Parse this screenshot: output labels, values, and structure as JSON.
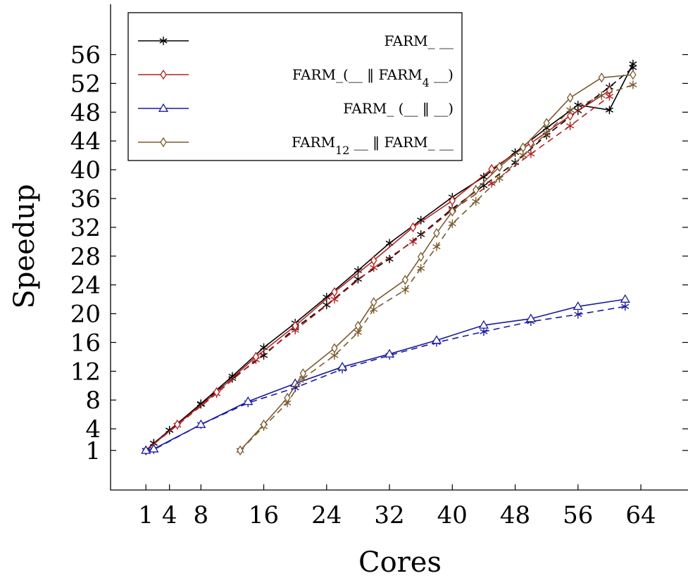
{
  "chart_data": {
    "type": "line",
    "xlabel": "Cores",
    "ylabel": "Speedup",
    "xlim": [
      -3.5,
      70
    ],
    "ylim": [
      -4.5,
      63
    ],
    "xticks": [
      1,
      4,
      8,
      16,
      24,
      32,
      40,
      48,
      56,
      64
    ],
    "yticks": [
      1,
      4,
      8,
      12,
      16,
      20,
      24,
      28,
      32,
      36,
      40,
      44,
      48,
      52,
      56
    ],
    "grid": false,
    "legend_position": "top-left",
    "series": [
      {
        "legend": "FARM_ __",
        "color": "#000000",
        "marker": "star",
        "solid": {
          "x": [
            1,
            2,
            4,
            8,
            12,
            16,
            20,
            24,
            28,
            32,
            36,
            40,
            44,
            48,
            52,
            56,
            60,
            63
          ],
          "y": [
            1,
            2,
            3.8,
            7.5,
            11.3,
            15.3,
            18.7,
            22.3,
            26,
            29.8,
            33,
            36.2,
            39,
            42.4,
            45.8,
            49,
            48.3,
            54.7
          ]
        },
        "dashed": {
          "x": [
            1,
            2,
            4,
            8,
            12,
            16,
            20,
            24,
            28,
            32,
            36,
            40,
            44,
            48,
            52,
            56,
            60,
            63
          ],
          "y": [
            1,
            2,
            3.8,
            7.4,
            11,
            14.2,
            18,
            21.2,
            24.8,
            27.6,
            31,
            34.6,
            37.8,
            41,
            44.8,
            48.2,
            51.5,
            54.2
          ]
        }
      },
      {
        "legend": "FARM_(__ ‖ FARM4 __)",
        "legend_parts": [
          "FARM_(__ ‖ FARM",
          "4",
          " __)"
        ],
        "color": "#b22222",
        "marker": "diamond",
        "solid": {
          "x": [
            1,
            6,
            11,
            15,
            19,
            23,
            27,
            31,
            35,
            39,
            43,
            47,
            51,
            55,
            59
          ],
          "y": [
            1,
            4.6,
            9.1,
            14,
            18.3,
            23,
            27.4,
            32,
            35.7,
            40.1,
            43.7,
            47.5,
            51,
            52.2,
            53.6
          ],
          "note": ""
        },
        "solid_points": {
          "x": [
            1,
            5,
            10,
            15,
            20,
            25,
            30,
            35,
            40,
            45,
            50,
            55,
            60
          ],
          "y": [
            1,
            4.6,
            9.1,
            14,
            18.3,
            23,
            27.4,
            32,
            35.7,
            40.1,
            43.7,
            47.5,
            51
          ]
        },
        "dashed": {
          "x": [
            1,
            5,
            10,
            15,
            20,
            25,
            30,
            35,
            40,
            45,
            50,
            55,
            60
          ],
          "y": [
            1,
            4.5,
            8.9,
            13.6,
            17.7,
            22,
            26.4,
            30,
            34.4,
            38.1,
            42.2,
            46.1,
            50.2
          ]
        }
      },
      {
        "legend": "FARM_ (__ ‖ __)",
        "color": "#1a1aa0",
        "marker": "triangle",
        "solid": {
          "x": [
            1,
            2,
            8,
            14,
            20,
            26,
            32,
            38,
            44,
            50,
            56,
            62
          ],
          "y": [
            1,
            1.2,
            4.6,
            7.8,
            10.3,
            12.6,
            14.4,
            16.3,
            18.4,
            19.3,
            21,
            22
          ]
        },
        "dashed": {
          "x": [
            1,
            2,
            8,
            14,
            20,
            26,
            32,
            38,
            44,
            50,
            56,
            62
          ],
          "y": [
            1,
            1.1,
            4.6,
            7.6,
            9.7,
            12.3,
            14.2,
            16,
            17.5,
            18.9,
            19.9,
            21
          ]
        }
      },
      {
        "legend": "FARM12 __ ‖ FARM_ __",
        "legend_parts": [
          "FARM",
          "12",
          " __ ‖ FARM_ __"
        ],
        "color": "#7a5a2e",
        "marker": "diamond",
        "solid": {
          "x": [
            13,
            16,
            19,
            21,
            25,
            28,
            30,
            34,
            36,
            38,
            40,
            43,
            46,
            49,
            52,
            55,
            59,
            63
          ],
          "y": [
            1,
            4.6,
            8.3,
            11.7,
            15.2,
            18.3,
            21.6,
            24.7,
            27.9,
            31.2,
            34.2,
            37.2,
            40.4,
            43.1,
            46.5,
            50,
            52.8,
            53.2
          ]
        },
        "dashed": {
          "x": [
            13,
            16,
            19,
            21,
            25,
            28,
            30,
            34,
            36,
            38,
            40,
            43,
            46,
            49,
            52,
            55,
            59,
            63
          ],
          "y": [
            1,
            4.3,
            7.6,
            11,
            14.2,
            17.4,
            20.6,
            23.3,
            26.3,
            29.3,
            32.5,
            35.6,
            38.8,
            42,
            45.1,
            48.3,
            50.3,
            51.8
          ]
        }
      }
    ]
  }
}
